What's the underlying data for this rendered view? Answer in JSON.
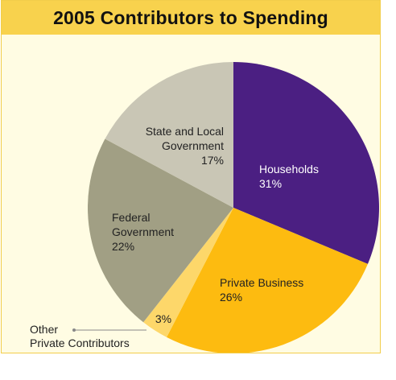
{
  "chart_data": {
    "type": "pie",
    "title": "2005 Contributors to Spending",
    "slices": [
      {
        "name": "Households",
        "label_lines": [
          "Households"
        ],
        "value": 31,
        "value_label": "31%",
        "color": "#4b1f82",
        "text_color": "#ffffff"
      },
      {
        "name": "Private Business",
        "label_lines": [
          "Private Business"
        ],
        "value": 26,
        "value_label": "26%",
        "color": "#fdbb10",
        "text_color": "#222222"
      },
      {
        "name": "Other Private Contributors",
        "label_lines": [
          "Other",
          "Private Contributors"
        ],
        "value": 3,
        "value_label": "3%",
        "color": "#fdd76a",
        "text_color": "#222222"
      },
      {
        "name": "Federal Government",
        "label_lines": [
          "Federal",
          "Government"
        ],
        "value": 22,
        "value_label": "22%",
        "color": "#a19f84",
        "text_color": "#222222"
      },
      {
        "name": "State and Local Government",
        "label_lines": [
          "State and Local",
          "Government"
        ],
        "value": 17,
        "value_label": "17%",
        "color": "#c9c6b5",
        "text_color": "#222222"
      }
    ],
    "start_angle": "12 o'clock",
    "direction": "clockwise",
    "legend": "none"
  }
}
